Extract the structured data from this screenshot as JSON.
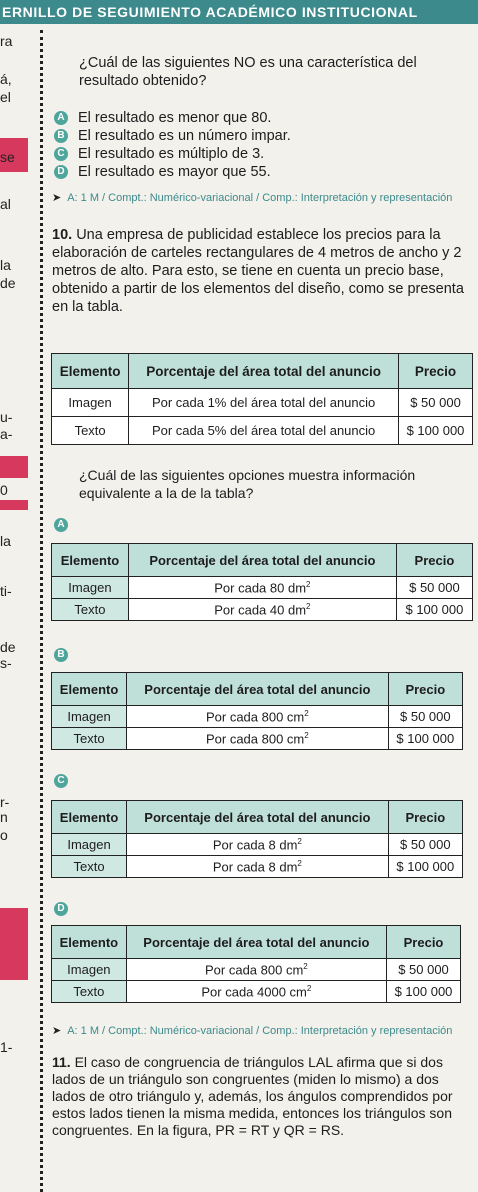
{
  "header": {
    "title": "ERNILLO DE SEGUIMIENTO ACADÉMICO INSTITUCIONAL"
  },
  "margin_fragments": [
    "ra",
    "á,",
    "el",
    "se",
    "al",
    "la",
    "de",
    "u-",
    "a-",
    "0",
    "la",
    "ti-",
    "de",
    "s-",
    "r-",
    "n",
    "o",
    "1-"
  ],
  "q9": {
    "stem": "¿Cuál de las siguientes NO es una característica del resultado obtenido?",
    "options": [
      {
        "letter": "A",
        "text": "El resultado es menor que 80."
      },
      {
        "letter": "B",
        "text": "El resultado es un número impar."
      },
      {
        "letter": "C",
        "text": "El resultado es múltiplo de 3."
      },
      {
        "letter": "D",
        "text": "El resultado es mayor que 55."
      }
    ],
    "meta": "A: 1 M / Compt.: Numérico-variacional / Comp.: Interpretación y representación"
  },
  "q10": {
    "number": "10.",
    "stem": "Una empresa de publicidad establece los precios para la elaboración de carteles rectangulares de 4 metros de ancho y 2 metros de alto. Para esto, se tiene en cuenta un precio base, obtenido a partir de los elementos del diseño, como se presenta en la tabla.",
    "table": {
      "headers": [
        "Elemento",
        "Porcentaje del área total del anuncio",
        "Precio"
      ],
      "rows": [
        [
          "Imagen",
          "Por cada 1% del área total del anuncio",
          "$ 50 000"
        ],
        [
          "Texto",
          "Por cada 5% del área total del anuncio",
          "$ 100 000"
        ]
      ]
    },
    "question": "¿Cuál de las siguientes opciones muestra información equivalente a la de la tabla?",
    "option_headers": [
      "Elemento",
      "Porcentaje del área total del anuncio",
      "Precio"
    ],
    "options": [
      {
        "letter": "A",
        "rows": [
          [
            "Imagen",
            "Por cada 80 dm",
            "2",
            "$ 50 000"
          ],
          [
            "Texto",
            "Por cada 40 dm",
            "2",
            "$ 100 000"
          ]
        ]
      },
      {
        "letter": "B",
        "rows": [
          [
            "Imagen",
            "Por cada 800 cm",
            "2",
            "$ 50 000"
          ],
          [
            "Texto",
            "Por cada 800 cm",
            "2",
            "$ 100 000"
          ]
        ]
      },
      {
        "letter": "C",
        "rows": [
          [
            "Imagen",
            "Por cada 8 dm",
            "2",
            "$ 50 000"
          ],
          [
            "Texto",
            "Por cada 8 dm",
            "2",
            "$ 100 000"
          ]
        ]
      },
      {
        "letter": "D",
        "rows": [
          [
            "Imagen",
            "Por cada 800 cm",
            "2",
            "$ 50 000"
          ],
          [
            "Texto",
            "Por cada 4000 cm",
            "2",
            "$ 100 000"
          ]
        ]
      }
    ],
    "meta": "A: 1 M / Compt.: Numérico-variacional / Comp.: Interpretación y representación"
  },
  "q11": {
    "number": "11.",
    "text": "El caso de congruencia de triángulos LAL afirma que si dos lados de un triángulo son congruentes (miden lo mismo) a dos lados de otro triángulo y, además, los ángulos comprendidos por estos lados tienen la misma medida, entonces los triángulos son congruentes. En la figura, PR = RT y QR = RS."
  },
  "colors": {
    "header_bg": "#3d8a8c",
    "accent": "#4ea59b",
    "table_header": "#bfe0d8",
    "margin_red": "#d6395d"
  }
}
